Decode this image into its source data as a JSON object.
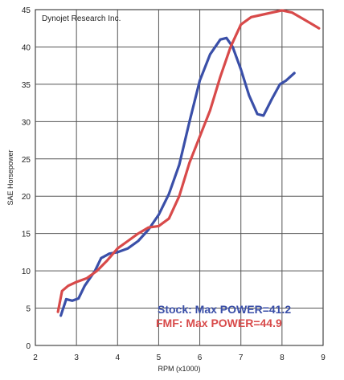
{
  "chart_data": {
    "type": "line",
    "title": "",
    "corner_text": "Dynojet Research Inc.",
    "xlabel": "RPM (x1000)",
    "ylabel": "SAE Horsepower",
    "xlim": [
      2,
      9
    ],
    "ylim": [
      0,
      45
    ],
    "x_ticks": [
      "2",
      "3",
      "4",
      "5",
      "6",
      "7",
      "8",
      "9"
    ],
    "y_ticks": [
      "0",
      "5",
      "10",
      "15",
      "20",
      "25",
      "30",
      "35",
      "40",
      "45"
    ],
    "grid": true,
    "legend_position": "bottom-right",
    "series": [
      {
        "name": "Stock: Max POWER=41.2",
        "color": "#3a4fa8",
        "points": [
          [
            2.62,
            4.0
          ],
          [
            2.75,
            6.2
          ],
          [
            2.9,
            6.0
          ],
          [
            3.05,
            6.3
          ],
          [
            3.2,
            8.0
          ],
          [
            3.45,
            10.0
          ],
          [
            3.6,
            11.7
          ],
          [
            3.8,
            12.3
          ],
          [
            4.0,
            12.5
          ],
          [
            4.25,
            13.0
          ],
          [
            4.5,
            14.0
          ],
          [
            4.75,
            15.5
          ],
          [
            5.0,
            17.5
          ],
          [
            5.25,
            20.3
          ],
          [
            5.5,
            24.2
          ],
          [
            5.75,
            30.0
          ],
          [
            6.0,
            35.5
          ],
          [
            6.25,
            39.0
          ],
          [
            6.5,
            41.0
          ],
          [
            6.65,
            41.2
          ],
          [
            6.8,
            40.0
          ],
          [
            7.0,
            37.0
          ],
          [
            7.2,
            33.5
          ],
          [
            7.4,
            31.0
          ],
          [
            7.55,
            30.8
          ],
          [
            7.75,
            33.0
          ],
          [
            7.95,
            35.0
          ],
          [
            8.1,
            35.5
          ],
          [
            8.3,
            36.5
          ]
        ]
      },
      {
        "name": "FMF: Max POWER=44.9",
        "color": "#d84a4a",
        "points": [
          [
            2.55,
            4.5
          ],
          [
            2.65,
            7.3
          ],
          [
            2.8,
            8.0
          ],
          [
            3.0,
            8.5
          ],
          [
            3.25,
            9.0
          ],
          [
            3.5,
            10.0
          ],
          [
            3.75,
            11.4
          ],
          [
            4.0,
            13.0
          ],
          [
            4.25,
            14.0
          ],
          [
            4.5,
            15.0
          ],
          [
            4.75,
            15.8
          ],
          [
            5.0,
            16.0
          ],
          [
            5.25,
            17.0
          ],
          [
            5.5,
            20.0
          ],
          [
            5.75,
            24.5
          ],
          [
            6.0,
            28.0
          ],
          [
            6.25,
            31.5
          ],
          [
            6.5,
            36.0
          ],
          [
            6.75,
            40.0
          ],
          [
            7.0,
            43.0
          ],
          [
            7.25,
            44.0
          ],
          [
            7.5,
            44.3
          ],
          [
            7.75,
            44.6
          ],
          [
            8.0,
            44.9
          ],
          [
            8.25,
            44.6
          ],
          [
            8.5,
            43.8
          ],
          [
            8.75,
            43.0
          ],
          [
            8.9,
            42.5
          ]
        ]
      }
    ]
  }
}
